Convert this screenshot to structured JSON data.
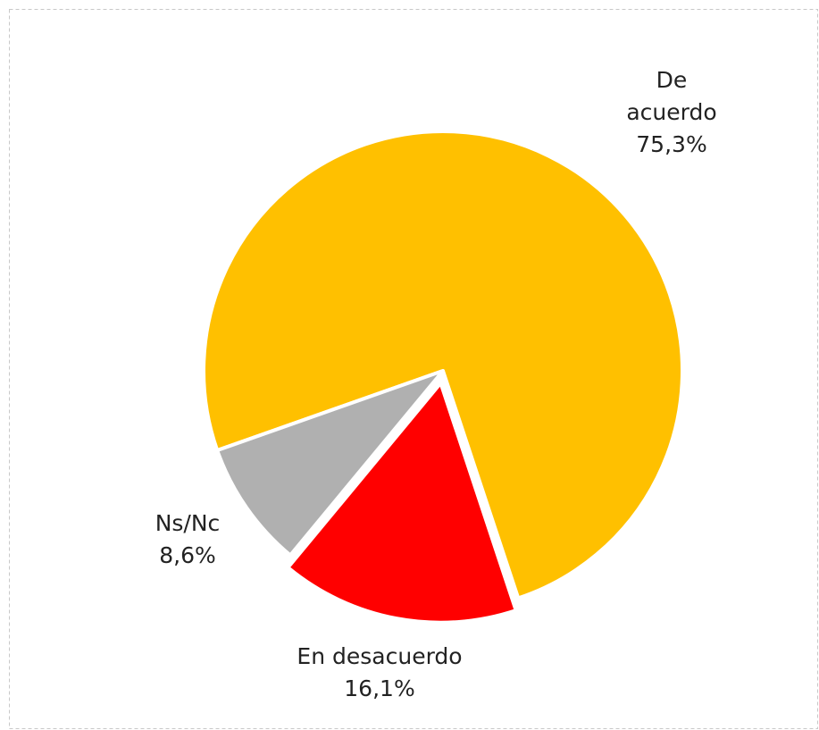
{
  "chart_data": {
    "type": "pie",
    "categories": [
      "De acuerdo",
      "En desacuerdo",
      "Ns/Nc"
    ],
    "values": [
      75.3,
      16.1,
      8.6
    ],
    "value_labels": [
      "75,3%",
      "16,1%",
      "8,6%"
    ],
    "colors": [
      "#ffc000",
      "#ff0000",
      "#b0b0b0"
    ]
  }
}
